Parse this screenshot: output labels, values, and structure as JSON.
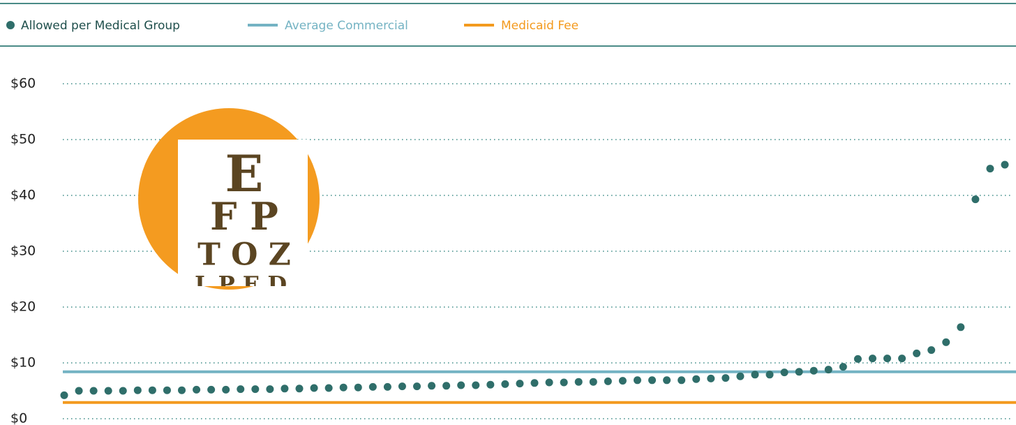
{
  "chart_data": {
    "type": "scatter",
    "series": [
      {
        "name": "Allowed per Medical Group",
        "color": "#2f6e6a",
        "values": [
          4.2,
          5.0,
          5.0,
          5.0,
          5.0,
          5.1,
          5.1,
          5.1,
          5.1,
          5.2,
          5.2,
          5.2,
          5.3,
          5.3,
          5.3,
          5.4,
          5.4,
          5.5,
          5.5,
          5.6,
          5.6,
          5.7,
          5.7,
          5.8,
          5.8,
          5.9,
          5.9,
          6.0,
          6.0,
          6.1,
          6.2,
          6.3,
          6.4,
          6.5,
          6.5,
          6.6,
          6.6,
          6.7,
          6.8,
          6.9,
          6.9,
          6.9,
          6.9,
          7.1,
          7.2,
          7.3,
          7.6,
          7.9,
          7.9,
          8.3,
          8.4,
          8.6,
          8.8,
          9.3,
          10.7,
          10.8,
          10.8,
          10.8,
          11.7,
          12.3,
          13.7,
          16.4,
          39.3,
          44.8,
          45.5
        ]
      }
    ],
    "reference_lines": [
      {
        "name": "Average Commercial",
        "color": "#74b3c3",
        "value": 8.4
      },
      {
        "name": "Medicaid Fee",
        "color": "#f39a1e",
        "value": 2.9
      }
    ],
    "ylim": [
      0,
      60
    ],
    "yticks": [
      {
        "value": 0,
        "label": "$0"
      },
      {
        "value": 10,
        "label": "$10"
      },
      {
        "value": 20,
        "label": "$20"
      },
      {
        "value": 30,
        "label": "$30"
      },
      {
        "value": 40,
        "label": "$40"
      },
      {
        "value": 50,
        "label": "$50"
      },
      {
        "value": 60,
        "label": "$60"
      }
    ],
    "grid": true,
    "illustration_text": [
      "E",
      "F P",
      "T O Z",
      "L P E D"
    ]
  }
}
